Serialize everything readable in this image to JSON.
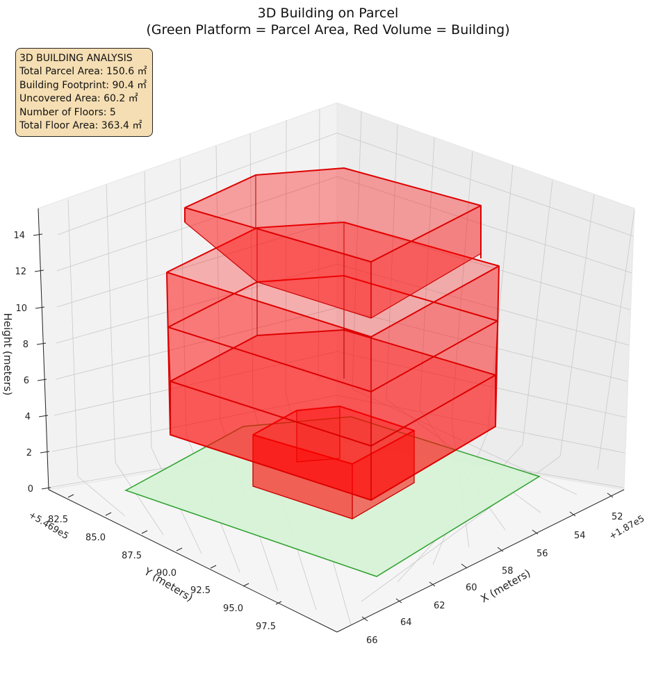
{
  "chart_data": {
    "type": "3d-polyhedron",
    "title_line1": "3D Building on Parcel",
    "title_line2": "(Green Platform = Parcel Area, Red Volume = Building)",
    "xlabel": "X (meters)",
    "ylabel": "Y (meters)",
    "zlabel": "Height (meters)",
    "x_offset": "+1.87e5",
    "y_offset": "+5.469e5",
    "x_ticks": [
      "52",
      "54",
      "56",
      "58",
      "60",
      "62",
      "64",
      "66"
    ],
    "y_ticks": [
      "82.5",
      "85.0",
      "87.5",
      "90.0",
      "92.5",
      "95.0",
      "97.5"
    ],
    "z_ticks": [
      "0",
      "2",
      "4",
      "6",
      "8",
      "10",
      "12",
      "14"
    ],
    "colors": {
      "parcel_fill": "#d6f2d6",
      "parcel_edge": "#2ca02c",
      "building": "#ff0000",
      "box_bg": "#f5deb3"
    },
    "info_box": [
      "3D BUILDING ANALYSIS",
      "Total Parcel Area: 150.6 ㎡",
      "Building Footprint: 90.4 ㎡",
      "Uncovered Area: 60.2 ㎡",
      "Number of Floors: 5",
      "Total Floor Area: 363.4 ㎡"
    ]
  }
}
